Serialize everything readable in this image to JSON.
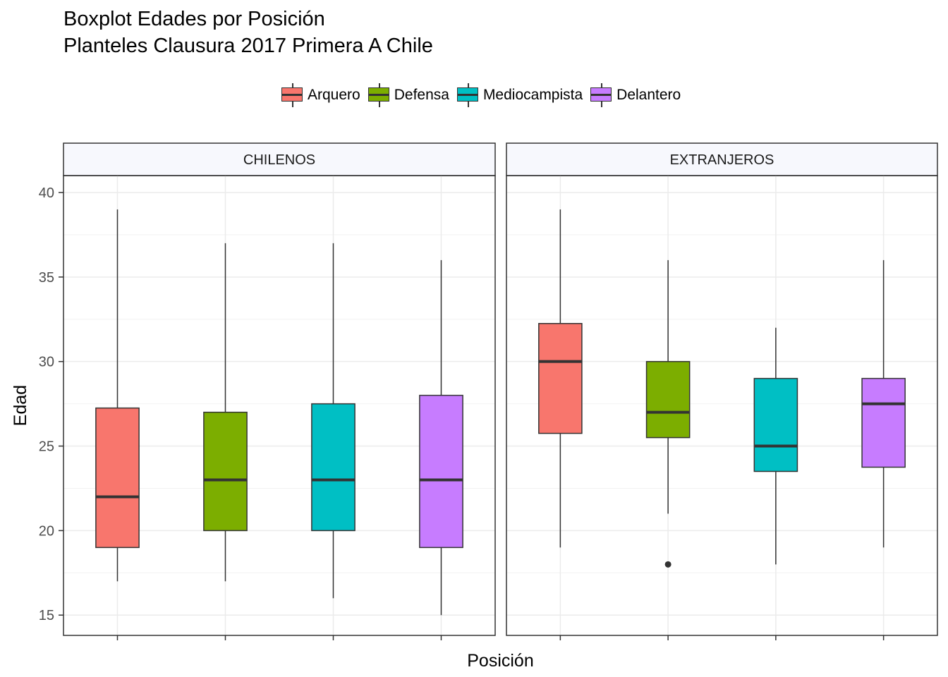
{
  "chart_data": {
    "type": "boxplot",
    "title": "Boxplot Edades por Posición",
    "subtitle": "Planteles Clausura 2017 Primera A Chile",
    "xlabel": "Posición",
    "ylabel": "Edad",
    "ylim": [
      13.8,
      41
    ],
    "yticks": [
      15,
      20,
      25,
      30,
      35,
      40
    ],
    "legend_position": "top",
    "categories": [
      "Arquero",
      "Defensa",
      "Mediocampista",
      "Delantero"
    ],
    "colors": {
      "Arquero": "#F8766D",
      "Defensa": "#7CAE00",
      "Mediocampista": "#00BFC4",
      "Delantero": "#C77CFF"
    },
    "panels": [
      {
        "name": "CHILENOS",
        "boxes": [
          {
            "category": "Arquero",
            "min": 17,
            "q1": 19,
            "median": 22,
            "q3": 27.25,
            "max": 39,
            "outliers": []
          },
          {
            "category": "Defensa",
            "min": 17,
            "q1": 20,
            "median": 23,
            "q3": 27,
            "max": 37,
            "outliers": []
          },
          {
            "category": "Mediocampista",
            "min": 16,
            "q1": 20,
            "median": 23,
            "q3": 27.5,
            "max": 37,
            "outliers": []
          },
          {
            "category": "Delantero",
            "min": 15,
            "q1": 19,
            "median": 23,
            "q3": 28,
            "max": 36,
            "outliers": []
          }
        ]
      },
      {
        "name": "EXTRANJEROS",
        "boxes": [
          {
            "category": "Arquero",
            "min": 19,
            "q1": 25.75,
            "median": 30,
            "q3": 32.25,
            "max": 39,
            "outliers": []
          },
          {
            "category": "Defensa",
            "min": 21,
            "q1": 25.5,
            "median": 27,
            "q3": 30,
            "max": 36,
            "outliers": [
              18
            ]
          },
          {
            "category": "Mediocampista",
            "min": 18,
            "q1": 23.5,
            "median": 25,
            "q3": 29,
            "max": 32,
            "outliers": []
          },
          {
            "category": "Delantero",
            "min": 19,
            "q1": 23.75,
            "median": 27.5,
            "q3": 29,
            "max": 36,
            "outliers": []
          }
        ]
      }
    ]
  }
}
